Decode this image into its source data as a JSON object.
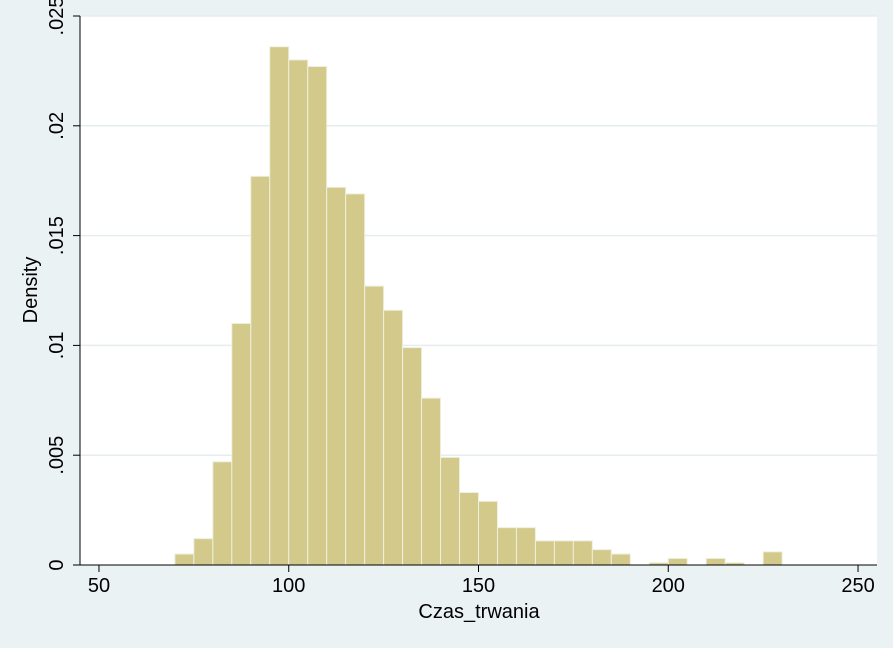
{
  "chart_data": {
    "type": "bar",
    "title": "",
    "xlabel": "Czas_trwania",
    "ylabel": "Density",
    "xlim": [
      45,
      255
    ],
    "ylim": [
      0,
      0.025
    ],
    "grid": true,
    "x_ticks": [
      50,
      100,
      150,
      200,
      250
    ],
    "x_tick_labels": [
      "50",
      "100",
      "150",
      "200",
      "250"
    ],
    "y_ticks": [
      0,
      0.005,
      0.01,
      0.015,
      0.02,
      0.025
    ],
    "y_tick_labels": [
      "0",
      ".005",
      ".01",
      ".015",
      ".02",
      ".025"
    ],
    "bin_width": 5,
    "bins": [
      {
        "start": 70,
        "value": 0.0005
      },
      {
        "start": 75,
        "value": 0.0012
      },
      {
        "start": 80,
        "value": 0.0047
      },
      {
        "start": 85,
        "value": 0.011
      },
      {
        "start": 90,
        "value": 0.0177
      },
      {
        "start": 95,
        "value": 0.0236
      },
      {
        "start": 100,
        "value": 0.023
      },
      {
        "start": 105,
        "value": 0.0227
      },
      {
        "start": 110,
        "value": 0.0172
      },
      {
        "start": 115,
        "value": 0.0169
      },
      {
        "start": 120,
        "value": 0.0127
      },
      {
        "start": 125,
        "value": 0.0116
      },
      {
        "start": 130,
        "value": 0.0099
      },
      {
        "start": 135,
        "value": 0.0076
      },
      {
        "start": 140,
        "value": 0.0049
      },
      {
        "start": 145,
        "value": 0.0033
      },
      {
        "start": 150,
        "value": 0.0029
      },
      {
        "start": 155,
        "value": 0.0017
      },
      {
        "start": 160,
        "value": 0.0017
      },
      {
        "start": 165,
        "value": 0.0011
      },
      {
        "start": 170,
        "value": 0.0011
      },
      {
        "start": 175,
        "value": 0.0011
      },
      {
        "start": 180,
        "value": 0.0007
      },
      {
        "start": 185,
        "value": 0.0005
      },
      {
        "start": 195,
        "value": 0.0001
      },
      {
        "start": 200,
        "value": 0.0003
      },
      {
        "start": 210,
        "value": 0.0003
      },
      {
        "start": 215,
        "value": 0.0001
      },
      {
        "start": 225,
        "value": 0.0006
      }
    ],
    "colors": {
      "bar_fill": "#d2c98a",
      "bar_stroke": "#eef0df",
      "plot_bg": "#ffffff",
      "outer_bg": "#eaf2f3",
      "grid": "#e6edef",
      "axis": "#000000"
    }
  }
}
